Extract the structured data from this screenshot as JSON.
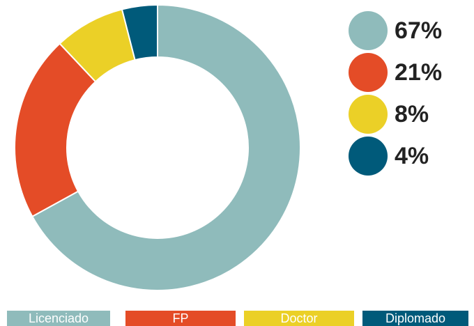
{
  "chart_data": {
    "type": "donut",
    "categories": [
      "Licenciado",
      "FP",
      "Doctor",
      "Diplomado"
    ],
    "values": [
      67,
      21,
      8,
      4
    ],
    "value_labels": [
      "67%",
      "21%",
      "8%",
      "4%"
    ],
    "colors": [
      "#8fbbbb",
      "#e44c27",
      "#ebd027",
      "#005a7a"
    ]
  }
}
